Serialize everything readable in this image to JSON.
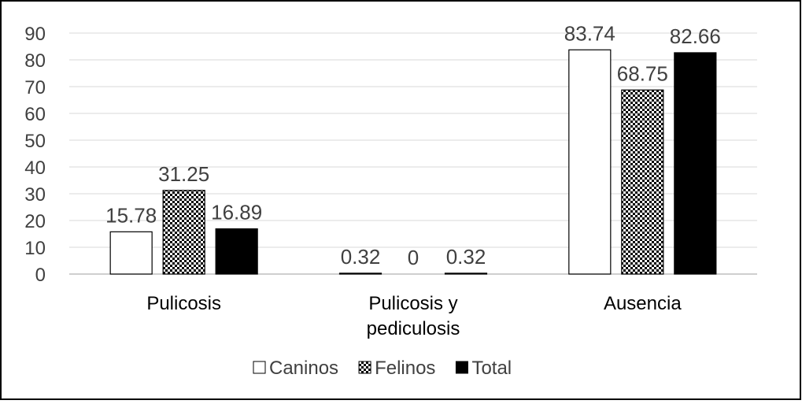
{
  "chart_data": {
    "type": "bar",
    "categories": [
      [
        "Pulicosis"
      ],
      [
        "Pulicosis y",
        "pediculosis"
      ],
      [
        "Ausencia"
      ]
    ],
    "series": [
      {
        "name": "Caninos",
        "values": [
          15.78,
          0.32,
          83.74
        ],
        "labels": [
          "15.78",
          "0.32",
          "83.74"
        ],
        "fill": "#ffffff",
        "stroke": "#000000",
        "pattern": "none"
      },
      {
        "name": "Felinos",
        "values": [
          31.25,
          0,
          68.75
        ],
        "labels": [
          "31.25",
          "0",
          "68.75"
        ],
        "fill": "#000000",
        "stroke": "#000000",
        "pattern": "checker"
      },
      {
        "name": "Total",
        "values": [
          16.89,
          0.32,
          82.66
        ],
        "labels": [
          "16.89",
          "0.32",
          "82.66"
        ],
        "fill": "#000000",
        "stroke": "#000000",
        "pattern": "none"
      }
    ],
    "title": "",
    "xlabel": "",
    "ylabel": "",
    "ylim": [
      0,
      90
    ],
    "yticks": [
      "0",
      "10",
      "20",
      "30",
      "40",
      "50",
      "60",
      "70",
      "80",
      "90"
    ],
    "grid": true,
    "legend_position": "bottom",
    "colors": {
      "gridline": "#d9d9d9",
      "axis": "#bfbfbf",
      "text": "#404040",
      "border": "#000000"
    }
  }
}
